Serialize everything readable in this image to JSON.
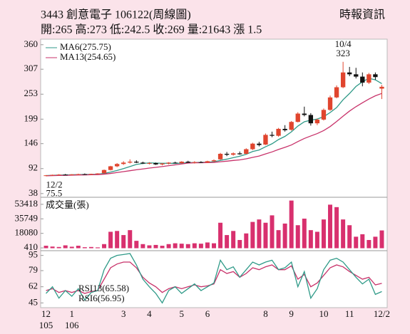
{
  "header": {
    "title": "3443 創意電子 106122(周線圖)",
    "source": "時報資訊",
    "info": "開:265 高:273 低:242.5 收:269 量:21643 漲 1.5"
  },
  "chart_data": [
    {
      "type": "candlestick",
      "open": [
        77,
        77.5,
        78.5,
        79,
        78.5,
        79.5,
        80,
        79.5,
        80.5,
        82,
        89,
        97,
        102,
        105,
        107,
        105,
        103,
        104,
        101,
        103,
        105,
        104,
        107,
        105,
        106,
        105,
        108,
        112,
        124,
        122,
        125,
        124,
        134,
        146,
        144,
        165,
        163,
        178,
        176,
        193,
        211,
        208,
        190,
        198,
        219,
        246,
        268,
        300,
        296,
        291,
        278,
        296,
        265
      ],
      "high": [
        78,
        79,
        80,
        80.5,
        80,
        81,
        81.5,
        81,
        82,
        90,
        98,
        104,
        108,
        112,
        110,
        107,
        106,
        105,
        104,
        106,
        107,
        108,
        109,
        108,
        108,
        109,
        112,
        126,
        128,
        127,
        129,
        136,
        148,
        150,
        168,
        172,
        180,
        186,
        195,
        214,
        226,
        212,
        200,
        222,
        250,
        272,
        323,
        312,
        310,
        300,
        299,
        300,
        273
      ],
      "low": [
        75.5,
        76.5,
        77.5,
        78,
        77.5,
        78.5,
        79,
        78.5,
        79.5,
        81.5,
        88,
        95,
        100,
        103,
        104,
        102,
        101,
        100,
        99,
        101,
        103,
        103,
        104,
        103,
        104,
        104,
        106,
        111,
        119,
        120,
        122,
        123,
        132,
        140,
        143,
        160,
        161,
        172,
        174,
        192,
        205,
        185,
        186,
        196,
        217,
        244,
        266,
        292,
        287,
        270,
        275,
        284,
        242.5
      ],
      "close": [
        77.5,
        78.5,
        79,
        78.5,
        79.5,
        80,
        79.5,
        80.5,
        81.5,
        89,
        97,
        102,
        105,
        107,
        105,
        103,
        104,
        101,
        103,
        105,
        104,
        107,
        105,
        106,
        105,
        108,
        110,
        124,
        122,
        125,
        123,
        134,
        146,
        143,
        165,
        163,
        178,
        175,
        193,
        211,
        208,
        190,
        198,
        219,
        246,
        268,
        300,
        296,
        291,
        278,
        296,
        290,
        269
      ],
      "up_color": "#e0452e",
      "down_color": "#111111",
      "series": [
        {
          "name": "MA6(275.75)",
          "color": "#2f9a88",
          "values": [
            77,
            77.5,
            78,
            78.3,
            78.6,
            79,
            79.2,
            79.5,
            79.8,
            81.5,
            84.5,
            88,
            92,
            96.5,
            101,
            103.2,
            104.3,
            104,
            103.6,
            103.5,
            103.3,
            104,
            104.8,
            105.2,
            105.5,
            105.8,
            106.8,
            109.7,
            112.5,
            115.7,
            118.8,
            123,
            129,
            132.3,
            139.3,
            145.7,
            154.8,
            161.7,
            171.5,
            184,
            193.3,
            196.7,
            199.2,
            204.3,
            213.3,
            224,
            241,
            254.5,
            269.7,
            279.8,
            287.3,
            284,
            275.75
          ]
        },
        {
          "name": "MA13(254.65)",
          "color": "#c8326a",
          "values": [
            76.5,
            76.8,
            77.2,
            77.5,
            77.8,
            78.1,
            78.4,
            78.7,
            79,
            80,
            81.5,
            83.5,
            85.5,
            87.5,
            89.5,
            91.3,
            93.1,
            94.7,
            96.4,
            98.3,
            100.1,
            102,
            103.9,
            104.6,
            104.8,
            105,
            105.3,
            106.8,
            108.1,
            109.6,
            110.9,
            113.2,
            116.3,
            119.2,
            123.7,
            128.1,
            133.4,
            138,
            143.1,
            150.4,
            157.2,
            162.6,
            167.8,
            174.3,
            183,
            193.9,
            205.5,
            216.5,
            226,
            234.4,
            242.5,
            249.5,
            254.65
          ]
        }
      ],
      "low_note": {
        "date": "12/2",
        "value": 75.5
      },
      "high_note": {
        "date": "10/4",
        "value": 323
      },
      "ylim": [
        30,
        372
      ],
      "yticks": [
        360,
        307,
        253,
        199,
        146,
        92,
        38
      ]
    },
    {
      "type": "bar",
      "title": "成交量(張)",
      "color": "#d8306e",
      "values": [
        3000,
        2000,
        1500,
        3500,
        1800,
        3000,
        1200,
        1500,
        1000,
        5000,
        20000,
        21000,
        16000,
        22000,
        9000,
        5000,
        3500,
        4000,
        3000,
        5000,
        6000,
        5500,
        5000,
        6000,
        5500,
        7000,
        6000,
        31000,
        16000,
        21000,
        10000,
        18000,
        32000,
        35000,
        31000,
        40000,
        22000,
        30000,
        58000,
        28000,
        36000,
        22000,
        20000,
        35000,
        53000,
        50000,
        35000,
        28000,
        14000,
        17000,
        10000,
        14000,
        21643
      ],
      "ylim": [
        -3000,
        62000
      ],
      "yticks": [
        53418,
        35749,
        18080,
        410
      ]
    },
    {
      "type": "line",
      "categories": [
        "12",
        null,
        null,
        null,
        "1",
        null,
        null,
        null,
        null,
        null,
        null,
        null,
        "3",
        null,
        null,
        null,
        "4",
        null,
        null,
        null,
        null,
        "5",
        null,
        null,
        null,
        "6",
        null,
        null,
        null,
        null,
        null,
        null,
        null,
        null,
        "8",
        null,
        null,
        null,
        "9",
        null,
        null,
        null,
        null,
        "10",
        null,
        null,
        null,
        "11",
        null,
        null,
        null,
        null,
        "12/2"
      ],
      "year_labels": [
        "105",
        null,
        null,
        null,
        "106",
        null,
        null,
        null,
        null,
        null,
        null,
        null,
        null,
        null,
        null,
        null,
        null,
        null,
        null,
        null,
        null,
        null,
        null,
        null,
        null,
        null,
        null,
        null,
        null,
        null,
        null,
        null,
        null,
        null,
        null,
        null,
        null,
        null,
        null,
        null,
        null,
        null,
        null,
        null,
        null,
        null,
        null,
        null,
        null,
        null,
        null,
        null,
        null
      ],
      "series": [
        {
          "name": "RSI13(65.58)",
          "color": "#c8326a",
          "values": [
            58,
            60,
            56,
            58,
            56,
            58,
            55,
            57,
            58,
            70,
            82,
            86,
            88,
            88,
            82,
            72,
            66,
            62,
            56,
            60,
            62,
            60,
            62,
            64,
            62,
            63,
            65,
            80,
            76,
            78,
            72,
            76,
            82,
            80,
            83,
            85,
            80,
            80,
            84,
            70,
            75,
            62,
            66,
            74,
            82,
            85,
            83,
            78,
            74,
            70,
            72,
            64,
            65.58
          ]
        },
        {
          "name": "RSI6(56.95)",
          "color": "#2f9a88",
          "values": [
            55,
            62,
            50,
            58,
            52,
            60,
            48,
            56,
            58,
            80,
            92,
            95,
            96,
            97,
            85,
            70,
            62,
            55,
            45,
            58,
            62,
            55,
            60,
            65,
            58,
            62,
            66,
            90,
            80,
            83,
            72,
            80,
            88,
            85,
            88,
            90,
            80,
            82,
            88,
            62,
            78,
            50,
            60,
            80,
            90,
            92,
            88,
            80,
            72,
            65,
            70,
            54,
            56.95
          ]
        }
      ],
      "ylim": [
        40,
        100
      ],
      "yticks": [
        95,
        79,
        62,
        45
      ]
    }
  ]
}
